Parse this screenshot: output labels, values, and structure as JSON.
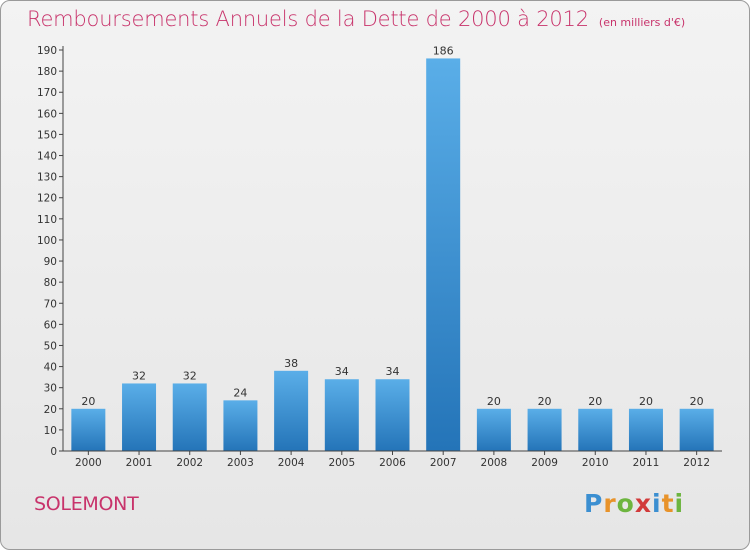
{
  "header": {
    "title": "Remboursements Annuels de la Dette de 2000 à 2012",
    "unit": "(en milliers d'€)"
  },
  "footer": {
    "commune": "SOLEMONT",
    "logo": "Proxiti"
  },
  "colors": {
    "title": "#c8336b",
    "bar_light": "#5aaee8",
    "bar_dark": "#2474b8"
  },
  "chart_data": {
    "type": "bar",
    "title": "Remboursements Annuels de la Dette de 2000 à 2012",
    "categories": [
      "2000",
      "2001",
      "2002",
      "2003",
      "2004",
      "2005",
      "2006",
      "2007",
      "2008",
      "2009",
      "2010",
      "2011",
      "2012"
    ],
    "values": [
      20,
      32,
      32,
      24,
      38,
      34,
      34,
      186,
      20,
      20,
      20,
      20,
      20
    ],
    "ylim": [
      0,
      190
    ],
    "ytick_step": 10,
    "grid": false,
    "data_labels": true
  }
}
